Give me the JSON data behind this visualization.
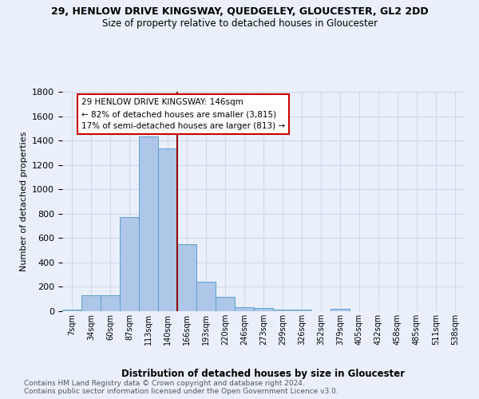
{
  "title1": "29, HENLOW DRIVE KINGSWAY, QUEDGELEY, GLOUCESTER, GL2 2DD",
  "title2": "Size of property relative to detached houses in Gloucester",
  "xlabel": "Distribution of detached houses by size in Gloucester",
  "ylabel": "Number of detached properties",
  "bar_labels": [
    "7sqm",
    "34sqm",
    "60sqm",
    "87sqm",
    "113sqm",
    "140sqm",
    "166sqm",
    "193sqm",
    "220sqm",
    "246sqm",
    "273sqm",
    "299sqm",
    "326sqm",
    "352sqm",
    "379sqm",
    "405sqm",
    "432sqm",
    "458sqm",
    "485sqm",
    "511sqm",
    "538sqm"
  ],
  "bar_values": [
    15,
    130,
    130,
    775,
    1435,
    1335,
    550,
    245,
    115,
    35,
    25,
    15,
    15,
    0,
    20,
    0,
    0,
    0,
    0,
    0,
    0
  ],
  "bar_color": "#aec6e8",
  "bar_edge_color": "#5a9fd4",
  "vline_color": "#8b0000",
  "ylim": [
    0,
    1800
  ],
  "yticks": [
    0,
    200,
    400,
    600,
    800,
    1000,
    1200,
    1400,
    1600,
    1800
  ],
  "annotation_text": "29 HENLOW DRIVE KINGSWAY: 146sqm\n← 82% of detached houses are smaller (3,815)\n17% of semi-detached houses are larger (813) →",
  "annotation_box_color": "#ffffff",
  "annotation_box_edge": "#cc0000",
  "footer_text": "Contains HM Land Registry data © Crown copyright and database right 2024.\nContains public sector information licensed under the Open Government Licence v3.0.",
  "bg_color": "#eaf0fb",
  "plot_bg_color": "#eaf0fb",
  "grid_color": "#d0d8e8"
}
